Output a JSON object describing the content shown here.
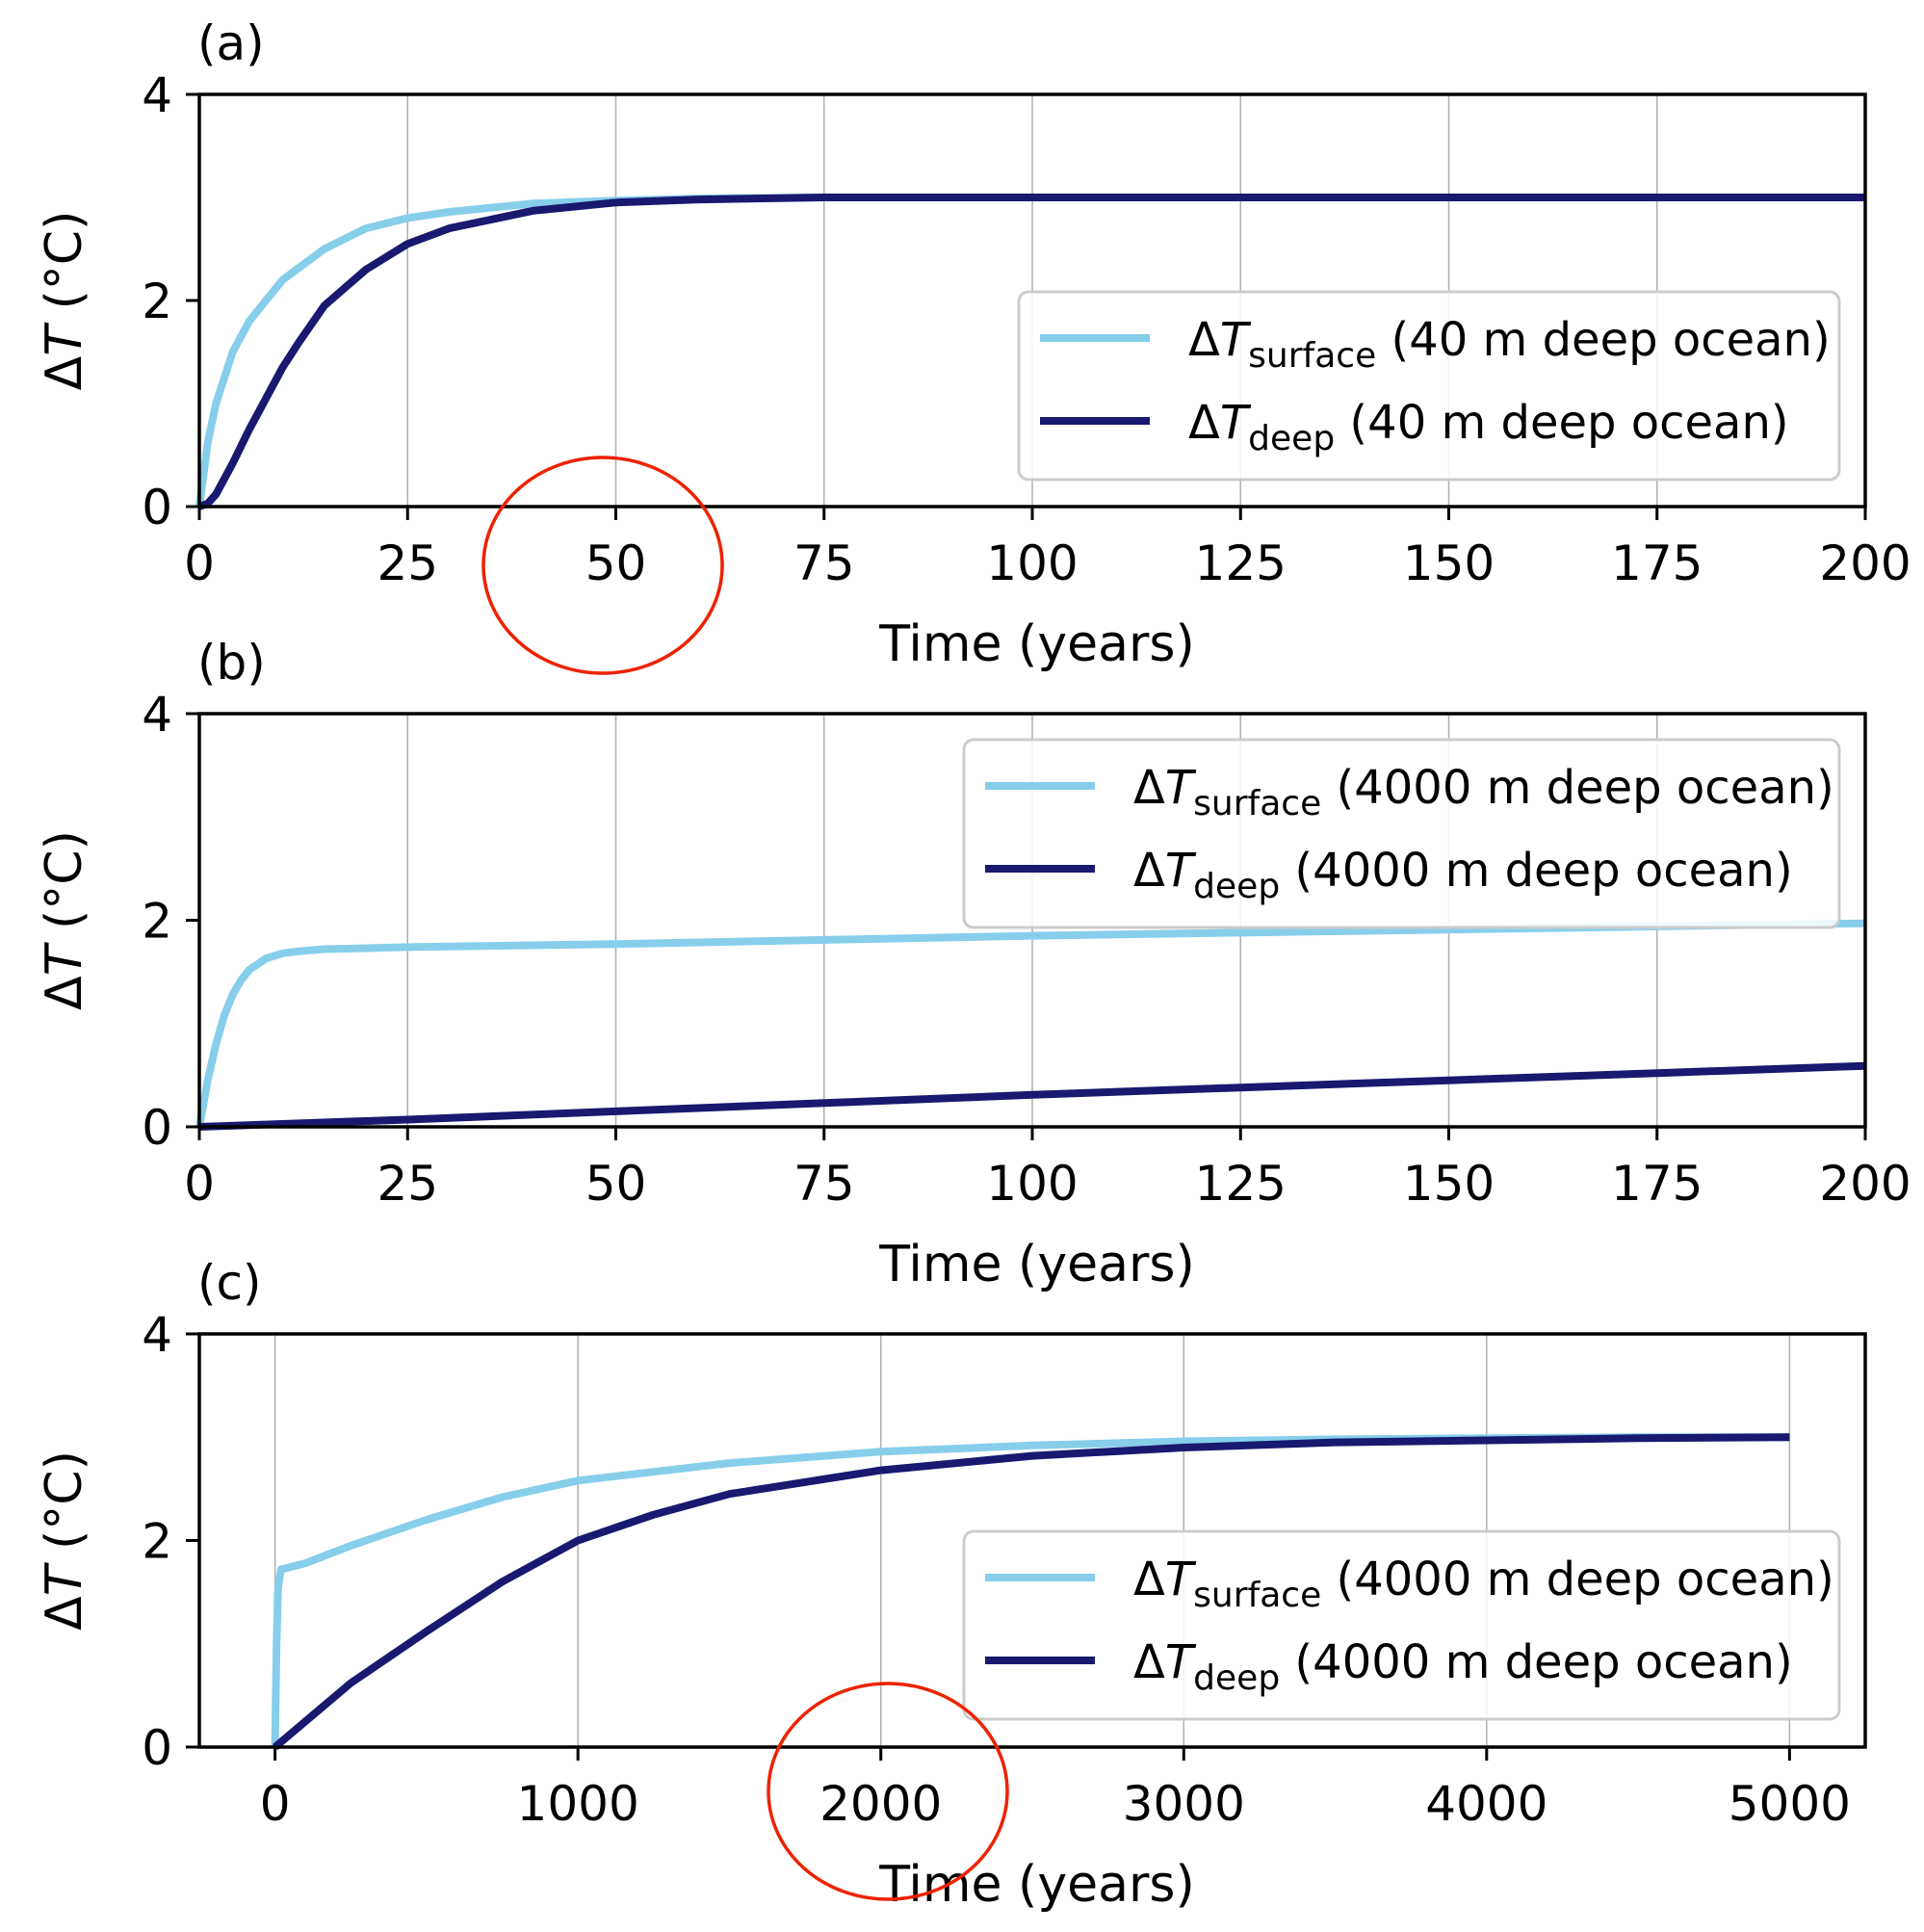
{
  "colors": {
    "surface": "#87ceeb",
    "deep": "#191970",
    "grid": "#b0b0b0",
    "annotation": "#ee2200",
    "axis": "#000000"
  },
  "chart_data": [
    {
      "type": "line",
      "panel_label": "(a)",
      "xlabel": "Time (years)",
      "ylabel_symbol": "T",
      "ylabel_prefix": "Δ",
      "ylabel_unit": " (°C)",
      "xlim": [
        0,
        200
      ],
      "ylim": [
        0,
        4
      ],
      "xticks": [
        0,
        25,
        50,
        75,
        100,
        125,
        150,
        175,
        200
      ],
      "xtick_labels": [
        "0",
        "25",
        "50",
        "75",
        "100",
        "125",
        "150",
        "175",
        "200"
      ],
      "yticks": [
        0,
        2,
        4
      ],
      "ytick_labels": [
        "0",
        "2",
        "4"
      ],
      "grid": "vertical",
      "legend_position": "center-right",
      "series": [
        {
          "name": "ΔTsurface (40 m deep ocean)",
          "legend_symbol": "T",
          "legend_sub": "surface",
          "legend_suffix": " (40 m deep ocean)",
          "color_key": "surface",
          "x": [
            0,
            1,
            2,
            4,
            6,
            8,
            10,
            15,
            20,
            25,
            30,
            40,
            50,
            60,
            75,
            100,
            125,
            150,
            175,
            200
          ],
          "y": [
            0,
            0.62,
            1.0,
            1.5,
            1.8,
            2.0,
            2.2,
            2.5,
            2.7,
            2.8,
            2.86,
            2.94,
            2.97,
            2.99,
            3.0,
            3.0,
            3.0,
            3.0,
            3.0,
            3.0
          ]
        },
        {
          "name": "ΔTdeep (40 m deep ocean)",
          "legend_symbol": "T",
          "legend_sub": "deep",
          "legend_suffix": " (40 m deep ocean)",
          "color_key": "deep",
          "x": [
            0,
            1,
            2,
            4,
            6,
            8,
            10,
            12,
            15,
            20,
            25,
            30,
            40,
            50,
            60,
            75,
            100,
            125,
            150,
            175,
            200
          ],
          "y": [
            0,
            0.03,
            0.12,
            0.42,
            0.75,
            1.05,
            1.35,
            1.6,
            1.95,
            2.3,
            2.55,
            2.7,
            2.87,
            2.95,
            2.98,
            3.0,
            3.0,
            3.0,
            3.0,
            3.0,
            3.0
          ]
        }
      ]
    },
    {
      "type": "line",
      "panel_label": "(b)",
      "xlabel": "Time (years)",
      "ylabel_symbol": "T",
      "ylabel_prefix": "Δ",
      "ylabel_unit": " (°C)",
      "xlim": [
        0,
        200
      ],
      "ylim": [
        0,
        4
      ],
      "xticks": [
        0,
        25,
        50,
        75,
        100,
        125,
        150,
        175,
        200
      ],
      "xtick_labels": [
        "0",
        "25",
        "50",
        "75",
        "100",
        "125",
        "150",
        "175",
        "200"
      ],
      "yticks": [
        0,
        2,
        4
      ],
      "ytick_labels": [
        "0",
        "2",
        "4"
      ],
      "grid": "vertical",
      "legend_position": "upper-right",
      "series": [
        {
          "name": "ΔTsurface (4000 m deep ocean)",
          "legend_symbol": "T",
          "legend_sub": "surface",
          "legend_suffix": " (4000 m deep ocean)",
          "color_key": "surface",
          "x": [
            0,
            1,
            2,
            3,
            4,
            5,
            6,
            8,
            10,
            12,
            15,
            20,
            25,
            50,
            75,
            100,
            125,
            150,
            175,
            200
          ],
          "y": [
            0,
            0.45,
            0.8,
            1.08,
            1.28,
            1.42,
            1.52,
            1.63,
            1.68,
            1.7,
            1.72,
            1.73,
            1.74,
            1.77,
            1.81,
            1.85,
            1.88,
            1.91,
            1.94,
            1.97
          ]
        },
        {
          "name": "ΔTdeep (4000 m deep ocean)",
          "legend_symbol": "T",
          "legend_sub": "deep",
          "legend_suffix": " (4000 m deep ocean)",
          "color_key": "deep",
          "x": [
            0,
            25,
            50,
            75,
            100,
            125,
            150,
            175,
            200
          ],
          "y": [
            0,
            0.07,
            0.15,
            0.23,
            0.31,
            0.38,
            0.45,
            0.52,
            0.59
          ]
        }
      ]
    },
    {
      "type": "line",
      "panel_label": "(c)",
      "xlabel": "Time (years)",
      "ylabel_symbol": "T",
      "ylabel_prefix": "Δ",
      "ylabel_unit": " (°C)",
      "xlim": [
        -250,
        5250
      ],
      "ylim": [
        0,
        4
      ],
      "xticks": [
        0,
        1000,
        2000,
        3000,
        4000,
        5000
      ],
      "xtick_labels": [
        "0",
        "1000",
        "2000",
        "3000",
        "4000",
        "5000"
      ],
      "yticks": [
        0,
        2,
        4
      ],
      "ytick_labels": [
        "0",
        "2",
        "4"
      ],
      "grid": "vertical",
      "legend_position": "lower-right",
      "series": [
        {
          "name": "ΔTsurface (4000 m deep ocean)",
          "legend_symbol": "T",
          "legend_sub": "surface",
          "legend_suffix": " (4000 m deep ocean)",
          "color_key": "surface",
          "x": [
            0,
            5,
            10,
            20,
            100,
            250,
            500,
            750,
            1000,
            1500,
            2000,
            2500,
            3000,
            3500,
            4000,
            4500,
            5000
          ],
          "y": [
            0,
            1.0,
            1.55,
            1.72,
            1.78,
            1.95,
            2.2,
            2.42,
            2.58,
            2.75,
            2.86,
            2.92,
            2.96,
            2.98,
            2.99,
            3.0,
            3.0
          ]
        },
        {
          "name": "ΔTdeep (4000 m deep ocean)",
          "legend_symbol": "T",
          "legend_sub": "deep",
          "legend_suffix": " (4000 m deep ocean)",
          "color_key": "deep",
          "x": [
            0,
            250,
            500,
            750,
            1000,
            1250,
            1500,
            2000,
            2500,
            3000,
            3500,
            4000,
            4500,
            5000
          ],
          "y": [
            0,
            0.62,
            1.12,
            1.6,
            2.0,
            2.25,
            2.45,
            2.68,
            2.82,
            2.9,
            2.95,
            2.97,
            2.99,
            3.0
          ]
        }
      ]
    }
  ],
  "annotations": [
    {
      "panel": 0,
      "shape": "ellipse",
      "encircles": "x tick label 50"
    },
    {
      "panel": 2,
      "shape": "ellipse",
      "encircles": "x tick label 2000"
    }
  ]
}
